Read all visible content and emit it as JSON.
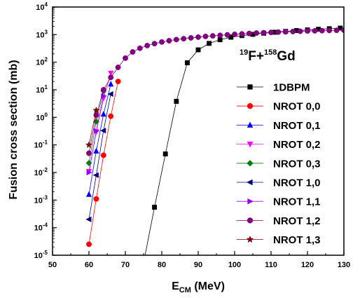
{
  "chart_data": {
    "type": "line",
    "reaction_label": {
      "pre_mass1": "19",
      "el1": "F+",
      "pre_mass2": "158",
      "el2": "Gd"
    },
    "xlabel": {
      "main": "E",
      "sub": "CM",
      "unit": " (MeV)"
    },
    "ylabel": "Fusion cross section (mb)",
    "xlim": [
      50,
      130
    ],
    "ylim_log10": [
      -5,
      4
    ],
    "x_ticks": [
      "50",
      "60",
      "70",
      "80",
      "90",
      "100",
      "110",
      "120",
      "130"
    ],
    "y_ticks": [
      {
        "base": "10",
        "exp": "-5"
      },
      {
        "base": "10",
        "exp": "-4"
      },
      {
        "base": "10",
        "exp": "-3"
      },
      {
        "base": "10",
        "exp": "-2"
      },
      {
        "base": "10",
        "exp": "-1"
      },
      {
        "base": "10",
        "exp": "0"
      },
      {
        "base": "10",
        "exp": "1"
      },
      {
        "base": "10",
        "exp": "2"
      },
      {
        "base": "10",
        "exp": "3"
      },
      {
        "base": "10",
        "exp": "4"
      }
    ],
    "log_scale_y": true,
    "grid": false,
    "legend_position": "right",
    "series": [
      {
        "name": "1DBPM",
        "color": "#000000",
        "marker": "square",
        "x": [
          78,
          81,
          84,
          87,
          90,
          93,
          96,
          99,
          102,
          105,
          108,
          111,
          114,
          117,
          120,
          123,
          126,
          129
        ],
        "y": [
          0.00055,
          0.047,
          3.8,
          95,
          280,
          480,
          650,
          800,
          920,
          1020,
          1120,
          1220,
          1310,
          1400,
          1480,
          1560,
          1640,
          1720
        ],
        "curve_x": [
          75.4,
          78,
          81,
          84,
          87,
          90,
          93,
          96,
          99,
          102,
          105,
          108,
          111,
          114,
          117,
          120,
          123,
          126,
          129
        ],
        "curve_y": [
          1e-05,
          0.00055,
          0.047,
          3.8,
          95,
          280,
          480,
          650,
          800,
          920,
          1020,
          1120,
          1220,
          1310,
          1400,
          1480,
          1560,
          1640,
          1720
        ]
      },
      {
        "name": "NROT 0,0",
        "color": "#ff0000",
        "marker": "circle",
        "x": [
          60,
          62,
          64,
          66,
          68
        ],
        "y": [
          2.5e-05,
          0.0011,
          0.042,
          1.1,
          20
        ]
      },
      {
        "name": "NROT 0,1",
        "color": "#0000ff",
        "marker": "triangle-up",
        "x": [
          60,
          62,
          64,
          66
        ],
        "y": [
          0.0016,
          0.06,
          1.3,
          16
        ]
      },
      {
        "name": "NROT 0,2",
        "color": "#ff00ff",
        "marker": "triangle-down",
        "x": [
          60,
          62,
          64,
          66
        ],
        "y": [
          0.011,
          0.3,
          5,
          40
        ]
      },
      {
        "name": "NROT 0,3",
        "color": "#008000",
        "marker": "diamond",
        "x": [
          60,
          62,
          64
        ],
        "y": [
          0.022,
          0.7,
          9
        ]
      },
      {
        "name": "NROT 1,0",
        "color": "#000080",
        "marker": "triangle-left",
        "x": [
          60,
          62,
          64,
          66
        ],
        "y": [
          0.0002,
          0.008,
          0.33,
          7
        ]
      },
      {
        "name": "NROT 1,1",
        "color": "#9900ff",
        "marker": "triangle-right",
        "x": [
          60,
          62,
          64
        ],
        "y": [
          0.01,
          0.32,
          6
        ]
      },
      {
        "name": "NROT 1,2",
        "color": "#800080",
        "marker": "circle",
        "x": [
          60,
          62,
          64,
          66,
          68,
          70,
          72,
          74,
          76,
          78,
          80,
          82,
          84,
          86,
          88,
          90,
          92,
          94,
          96,
          98,
          100,
          102,
          104,
          106,
          108,
          110,
          112,
          114,
          116,
          118,
          120,
          122,
          124,
          126,
          128,
          130
        ],
        "y": [
          0.05,
          1.2,
          10,
          28,
          65,
          140,
          235,
          320,
          400,
          470,
          540,
          600,
          660,
          710,
          760,
          810,
          860,
          900,
          940,
          980,
          1020,
          1060,
          1100,
          1140,
          1170,
          1200,
          1230,
          1260,
          1290,
          1320,
          1350,
          1370,
          1390,
          1410,
          1430,
          1450
        ]
      },
      {
        "name": "NROT 1,3",
        "color": "#800000",
        "marker": "star",
        "x": [
          60,
          62
        ],
        "y": [
          0.1,
          1.8
        ]
      }
    ]
  }
}
